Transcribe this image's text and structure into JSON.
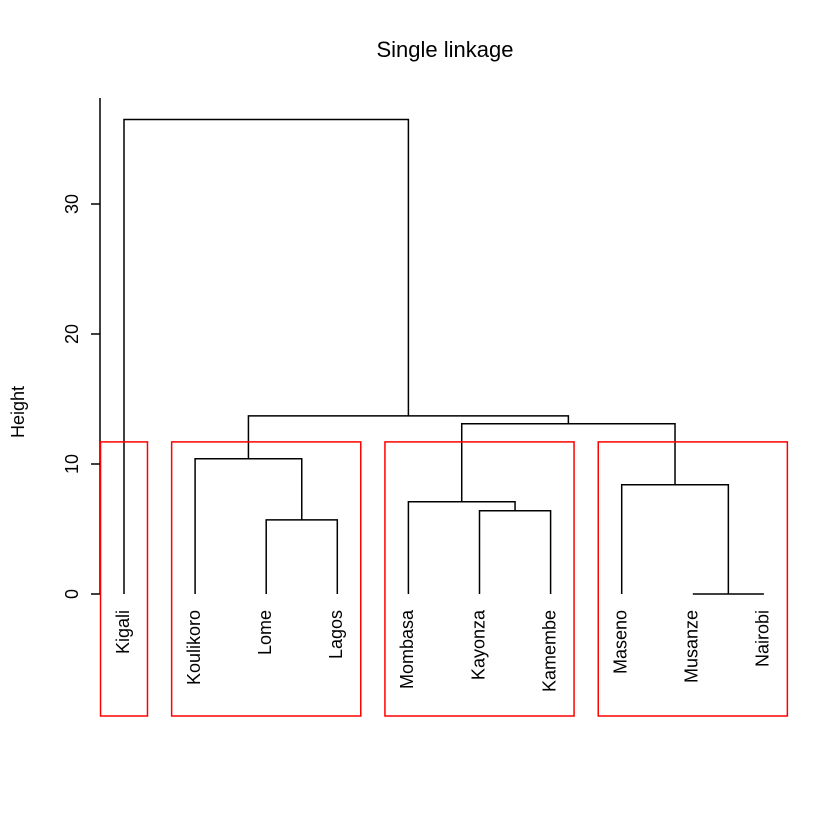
{
  "chart_data": {
    "type": "dendrogram",
    "title": "Single linkage",
    "ylabel": "Height",
    "xlabel": "",
    "ylim": [
      0,
      36.5
    ],
    "yticks": [
      0,
      10,
      20,
      30
    ],
    "leaves": [
      "Kigali",
      "Koulikoro",
      "Lome",
      "Lagos",
      "Mombasa",
      "Kayonza",
      "Kamembe",
      "Maseno",
      "Musanze",
      "Nairobi"
    ],
    "merges": [
      {
        "left": "Musanze",
        "right": "Nairobi",
        "height": 0.0
      },
      {
        "left": "Lome",
        "right": "Lagos",
        "height": 5.7
      },
      {
        "left": "Kayonza",
        "right": "Kamembe",
        "height": 6.4
      },
      {
        "left": "Mombasa",
        "right": [
          "Kayonza",
          "Kamembe"
        ],
        "height": 7.1
      },
      {
        "left": "Maseno",
        "right": [
          "Musanze",
          "Nairobi"
        ],
        "height": 8.4
      },
      {
        "left": "Koulikoro",
        "right": [
          "Lome",
          "Lagos"
        ],
        "height": 10.4
      },
      {
        "left": [
          "Mombasa",
          "Kayonza",
          "Kamembe"
        ],
        "right": [
          "Maseno",
          "Musanze",
          "Nairobi"
        ],
        "height": 13.1
      },
      {
        "left": [
          "Koulikoro",
          "Lome",
          "Lagos"
        ],
        "right": [
          "Mombasa",
          "Kayonza",
          "Kamembe",
          "Maseno",
          "Musanze",
          "Nairobi"
        ],
        "height": 13.7
      },
      {
        "left": "Kigali",
        "right": [
          "Koulikoro",
          "Lome",
          "Lagos",
          "Mombasa",
          "Kayonza",
          "Kamembe",
          "Maseno",
          "Musanze",
          "Nairobi"
        ],
        "height": 36.5
      }
    ],
    "clusters": [
      [
        "Kigali"
      ],
      [
        "Koulikoro",
        "Lome",
        "Lagos"
      ],
      [
        "Mombasa",
        "Kayonza",
        "Kamembe"
      ],
      [
        "Maseno",
        "Musanze",
        "Nairobi"
      ]
    ],
    "cluster_box_color": "#ff0000",
    "line_color": "#000000",
    "cluster_cut_height": 11.7
  }
}
